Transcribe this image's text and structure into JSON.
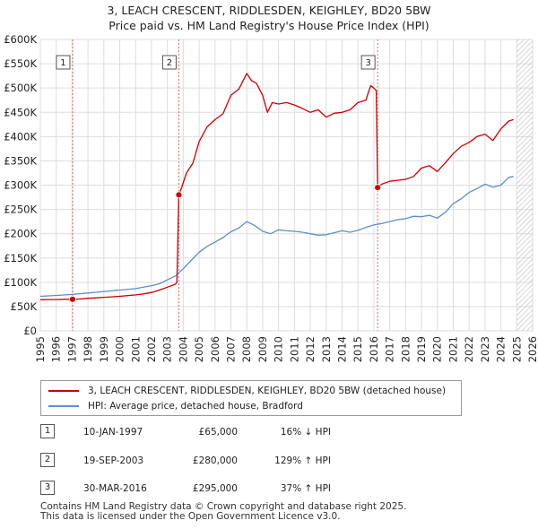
{
  "title_line1": "3, LEACH CRESCENT, RIDDLESDEN, KEIGHLEY, BD20 5BW",
  "title_line2": "Price paid vs. HM Land Registry's House Price Index (HPI)",
  "chart_data": {
    "type": "line",
    "title": "3, LEACH CRESCENT, RIDDLESDEN, KEIGHLEY, BD20 5BW — Price paid vs. HM Land Registry's House Price Index (HPI)",
    "xlabel": "",
    "ylabel": "",
    "xlim": [
      1995,
      2026
    ],
    "ylim": [
      0,
      600000
    ],
    "grid": true,
    "y_ticks": [
      {
        "value": 0,
        "label": "£0"
      },
      {
        "value": 50000,
        "label": "£50K"
      },
      {
        "value": 100000,
        "label": "£100K"
      },
      {
        "value": 150000,
        "label": "£150K"
      },
      {
        "value": 200000,
        "label": "£200K"
      },
      {
        "value": 250000,
        "label": "£250K"
      },
      {
        "value": 300000,
        "label": "£300K"
      },
      {
        "value": 350000,
        "label": "£350K"
      },
      {
        "value": 400000,
        "label": "£400K"
      },
      {
        "value": 450000,
        "label": "£450K"
      },
      {
        "value": 500000,
        "label": "£500K"
      },
      {
        "value": 550000,
        "label": "£550K"
      },
      {
        "value": 600000,
        "label": "£600K"
      }
    ],
    "x_ticks": [
      "1995",
      "1996",
      "1997",
      "1998",
      "1999",
      "2000",
      "2001",
      "2002",
      "2003",
      "2004",
      "2005",
      "2006",
      "2007",
      "2008",
      "2009",
      "2010",
      "2011",
      "2012",
      "2013",
      "2014",
      "2015",
      "2016",
      "2017",
      "2018",
      "2019",
      "2020",
      "2021",
      "2022",
      "2023",
      "2024",
      "2025",
      "2026"
    ],
    "hatched_after": 2025.0,
    "series": [
      {
        "name": "3, LEACH CRESCENT, RIDDLESDEN, KEIGHLEY, BD20 5BW (detached house)",
        "color": "#cc0000",
        "x": [
          1995.0,
          1995.5,
          1996.0,
          1996.5,
          1997.03,
          1997.5,
          1998.0,
          1998.5,
          1999.0,
          1999.5,
          2000.0,
          2000.5,
          2001.0,
          2001.5,
          2002.0,
          2002.5,
          2003.0,
          2003.5,
          2003.6,
          2003.72,
          2003.9,
          2004.2,
          2004.6,
          2005.0,
          2005.5,
          2006.0,
          2006.5,
          2007.0,
          2007.5,
          2008.0,
          2008.3,
          2008.6,
          2009.0,
          2009.3,
          2009.6,
          2010.0,
          2010.5,
          2011.0,
          2011.5,
          2012.0,
          2012.5,
          2013.0,
          2013.5,
          2014.0,
          2014.5,
          2015.0,
          2015.5,
          2015.8,
          2016.0,
          2016.15,
          2016.24,
          2016.5,
          2017.0,
          2017.5,
          2018.0,
          2018.5,
          2019.0,
          2019.5,
          2020.0,
          2020.5,
          2021.0,
          2021.5,
          2022.0,
          2022.5,
          2023.0,
          2023.5,
          2024.0,
          2024.5,
          2024.8
        ],
        "y": [
          64000,
          64500,
          64500,
          65000,
          65000,
          65500,
          67000,
          68000,
          69000,
          70000,
          71000,
          72500,
          74000,
          76000,
          79000,
          84000,
          90000,
          96000,
          100000,
          280000,
          295000,
          325000,
          345000,
          390000,
          420000,
          435000,
          447000,
          485000,
          498000,
          530000,
          515000,
          510000,
          485000,
          450000,
          470000,
          467000,
          470000,
          465000,
          458000,
          450000,
          455000,
          440000,
          448000,
          450000,
          455000,
          470000,
          475000,
          505000,
          500000,
          495000,
          295000,
          302000,
          308000,
          310000,
          312000,
          318000,
          335000,
          340000,
          328000,
          346000,
          365000,
          380000,
          388000,
          400000,
          405000,
          392000,
          416000,
          432000,
          435000
        ]
      },
      {
        "name": "HPI: Average price, detached house, Bradford",
        "color": "#5b8ed0",
        "x": [
          1995.0,
          1996.0,
          1997.0,
          1998.0,
          1999.0,
          2000.0,
          2001.0,
          2002.0,
          2002.5,
          2003.0,
          2003.5,
          2004.0,
          2004.5,
          2005.0,
          2005.5,
          2006.0,
          2006.5,
          2007.0,
          2007.5,
          2008.0,
          2008.5,
          2009.0,
          2009.5,
          2010.0,
          2010.5,
          2011.0,
          2011.5,
          2012.0,
          2012.5,
          2013.0,
          2013.5,
          2014.0,
          2014.5,
          2015.0,
          2015.5,
          2016.0,
          2016.5,
          2017.0,
          2017.5,
          2018.0,
          2018.5,
          2019.0,
          2019.5,
          2020.0,
          2020.5,
          2021.0,
          2021.5,
          2022.0,
          2022.5,
          2023.0,
          2023.5,
          2024.0,
          2024.5,
          2024.8
        ],
        "y": [
          71000,
          73000,
          75000,
          78000,
          81000,
          84000,
          87000,
          93000,
          97000,
          105000,
          113000,
          128000,
          145000,
          162000,
          174000,
          183000,
          192000,
          204000,
          212000,
          225000,
          217000,
          205000,
          200000,
          208000,
          206000,
          205000,
          203000,
          200000,
          197000,
          198000,
          202000,
          206000,
          203000,
          207000,
          213000,
          218000,
          221000,
          225000,
          229000,
          231000,
          236000,
          235000,
          238000,
          232000,
          244000,
          262000,
          272000,
          285000,
          293000,
          302000,
          296000,
          300000,
          316000,
          318000
        ]
      }
    ],
    "markers": [
      {
        "label": "1",
        "x": 1997.03,
        "y": 65000
      },
      {
        "label": "2",
        "x": 2003.72,
        "y": 280000
      },
      {
        "label": "3",
        "x": 2016.24,
        "y": 295000
      }
    ],
    "legend": {
      "placement": "below-chart",
      "entries": [
        {
          "label": "3, LEACH CRESCENT, RIDDLESDEN, KEIGHLEY, BD20 5BW (detached house)",
          "color": "#cc0000"
        },
        {
          "label": "HPI: Average price, detached house, Bradford",
          "color": "#5b8ed0"
        }
      ]
    }
  },
  "sales": [
    {
      "num": "1",
      "date": "10-JAN-1997",
      "price": "£65,000",
      "hpi": "16% ↓ HPI"
    },
    {
      "num": "2",
      "date": "19-SEP-2003",
      "price": "£280,000",
      "hpi": "129% ↑ HPI"
    },
    {
      "num": "3",
      "date": "30-MAR-2016",
      "price": "£295,000",
      "hpi": "37% ↑ HPI"
    }
  ],
  "footer_line1": "Contains HM Land Registry data © Crown copyright and database right 2025.",
  "footer_line2": "This data is licensed under the Open Government Licence v3.0."
}
